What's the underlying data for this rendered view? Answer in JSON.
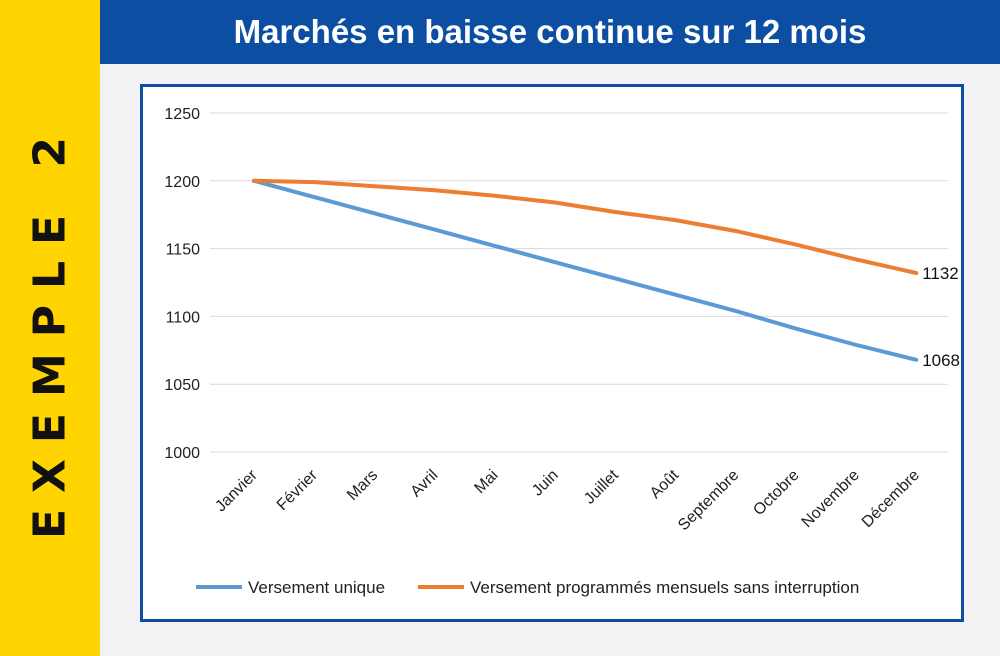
{
  "side_label": "EXEMPLE 2",
  "header": {
    "title": "Marchés en baisse continue sur 12 mois"
  },
  "colors": {
    "band": "#ffd400",
    "header": "#0b4ea2",
    "series_1": "#5b9bd5",
    "series_2": "#ed7d31",
    "grid": "#d9d9d9"
  },
  "chart_data": {
    "type": "line",
    "title": "",
    "xlabel": "",
    "ylabel": "",
    "ylim": [
      1000,
      1250
    ],
    "yticks": [
      1000,
      1050,
      1100,
      1150,
      1200,
      1250
    ],
    "grid": true,
    "legend_position": "bottom",
    "categories": [
      "Janvier",
      "Février",
      "Mars",
      "Avril",
      "Mai",
      "Juin",
      "Juillet",
      "Août",
      "Septembre",
      "Octobre",
      "Novembre",
      "Décembre"
    ],
    "series": [
      {
        "name": "Versement unique",
        "color": "#5b9bd5",
        "values": [
          1200,
          1188,
          1176,
          1164,
          1152,
          1140,
          1128,
          1116,
          1104,
          1091,
          1079,
          1068
        ],
        "end_label": "1068"
      },
      {
        "name": "Versement programmés mensuels sans interruption",
        "color": "#ed7d31",
        "values": [
          1200,
          1199,
          1196,
          1193,
          1189,
          1184,
          1177,
          1171,
          1163,
          1153,
          1142,
          1132
        ],
        "end_label": "1132"
      }
    ]
  }
}
